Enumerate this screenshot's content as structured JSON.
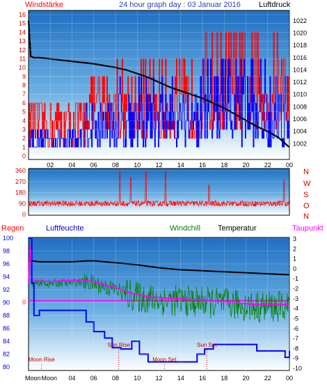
{
  "header": {
    "title": "24 hour graph day : 03 Januar 2016",
    "left_label": "Windstärke",
    "right_label": "Luftdruck"
  },
  "colors": {
    "wind": "#ff0000",
    "gust": "#0000ff",
    "pressure": "#000000",
    "direction": "#ff0000",
    "rain": "#ff0000",
    "humidity": "#0000ff",
    "windchill": "#008000",
    "temperature": "#000000",
    "dewpoint": "#ff00ff",
    "moon": "#c00000",
    "panel_top": "#2273c4",
    "panel_bottom": "#ffffff"
  },
  "chart_data": [
    {
      "type": "line",
      "name": "wind-pressure",
      "x_ticks": [
        "02",
        "04",
        "06",
        "08",
        "10",
        "12",
        "14",
        "16",
        "18",
        "20",
        "22",
        "00"
      ],
      "xlim": [
        0,
        24
      ],
      "ylabel": "Windstärke",
      "ylim": [
        0,
        16
      ],
      "y_ticks": [
        "0",
        "1",
        "2",
        "3",
        "4",
        "5",
        "6",
        "7",
        "8",
        "9",
        "10",
        "11",
        "12",
        "13",
        "14",
        "15",
        "16"
      ],
      "y2label": "Luftdruck",
      "y2lim": [
        1000,
        1023
      ],
      "y2_ticks": [
        "1002",
        "1004",
        "1006",
        "1008",
        "1010",
        "1012",
        "1014",
        "1016",
        "1018",
        "1020",
        "1022"
      ],
      "pressure": {
        "x": [
          0,
          0.2,
          0.5,
          1,
          2,
          3,
          4,
          5,
          6,
          7,
          8,
          9,
          10,
          11,
          12,
          13,
          14,
          15,
          16,
          17,
          18,
          19,
          20,
          21,
          22,
          23,
          23.5,
          24
        ],
        "y": [
          1022.0,
          1016.2,
          1016.0,
          1016.0,
          1015.8,
          1015.6,
          1015.4,
          1015.2,
          1015.0,
          1014.7,
          1014.4,
          1014.0,
          1013.4,
          1012.8,
          1012.0,
          1011.2,
          1010.6,
          1010.0,
          1009.4,
          1008.6,
          1007.8,
          1006.8,
          1005.8,
          1004.8,
          1004.0,
          1003.0,
          1002.2,
          1001.4
        ]
      },
      "wind_levels": [
        1,
        2,
        3,
        4,
        5,
        6,
        7,
        9,
        11,
        14
      ],
      "wind_range_by_period": [
        {
          "from": 0,
          "to": 5.2,
          "min": 1,
          "max": 6
        },
        {
          "from": 5.2,
          "to": 8,
          "min": 3,
          "max": 9
        },
        {
          "from": 8,
          "to": 16,
          "min": 2,
          "max": 12
        },
        {
          "from": 16,
          "to": 24,
          "min": 3,
          "max": 14
        }
      ]
    },
    {
      "type": "line",
      "name": "wind-direction",
      "x_ticks": [],
      "xlim": [
        0,
        24
      ],
      "ylim": [
        0,
        360
      ],
      "y_ticks": [
        "0",
        "90",
        "180",
        "270",
        "360"
      ],
      "compass_labels": [
        "N",
        "W",
        "S",
        "O",
        "N"
      ],
      "mean_direction": 90,
      "spikes": [
        {
          "x": 8.4,
          "y": 360
        },
        {
          "x": 9.4,
          "y": 300
        },
        {
          "x": 10.8,
          "y": 355
        },
        {
          "x": 12.6,
          "y": 350
        },
        {
          "x": 16.6,
          "y": 240
        },
        {
          "x": 23.5,
          "y": 280
        }
      ]
    },
    {
      "type": "line",
      "name": "climate",
      "x_ticks": [
        "Moon Rise",
        "Moon Set",
        "04",
        "06",
        "08",
        "10",
        "12",
        "14",
        "16",
        "18",
        "20",
        "22",
        "00"
      ],
      "xlim": [
        0,
        24
      ],
      "ylabel": "Regen",
      "ylim_left": [
        80,
        100
      ],
      "left_ticks": [
        "80",
        "82",
        "84",
        "86",
        "88",
        "90",
        "92",
        "94",
        "96",
        "98",
        "100"
      ],
      "rain_label": "0",
      "ylim_right": [
        -10,
        3
      ],
      "right_ticks": [
        "3",
        "2",
        "1",
        "0",
        "-1",
        "-2",
        "-3",
        "-4",
        "-5",
        "-6",
        "-7",
        "-8",
        "-9",
        "-10"
      ],
      "legend": [
        "Regen",
        "Luftfeuchte",
        "Windchill",
        "Temperatur",
        "Taupunkt"
      ],
      "humidity": {
        "x": [
          0,
          0.3,
          0.5,
          1,
          4.8,
          5.3,
          6,
          7,
          7.7,
          8.5,
          9.5,
          10.2,
          11,
          15,
          15.5,
          16.2,
          17,
          20.5,
          21,
          23.5,
          23.6,
          24
        ],
        "y": [
          100,
          93,
          88,
          88.8,
          88.8,
          87,
          85.5,
          84.5,
          83,
          82.8,
          84,
          82,
          80.8,
          80.8,
          82,
          82.8,
          83.5,
          83.5,
          82.5,
          82.5,
          81.5,
          82.5
        ]
      },
      "temperature": {
        "x": [
          0,
          0.3,
          1,
          2,
          4,
          5.5,
          6,
          8,
          10,
          12,
          14,
          16,
          18,
          20,
          22,
          24
        ],
        "y": [
          0.6,
          0.8,
          0.7,
          0.7,
          0.7,
          0.8,
          0.8,
          0.6,
          0.4,
          0.1,
          -0.1,
          -0.2,
          -0.3,
          -0.4,
          -0.5,
          -0.6
        ]
      },
      "dewpoint": {
        "x": [
          0,
          0.15,
          0.3,
          0.6,
          1,
          2,
          3,
          4,
          5,
          6,
          7,
          8,
          9,
          10,
          11,
          12,
          13,
          14,
          15,
          16,
          17,
          18,
          19,
          20,
          21,
          22,
          23,
          24
        ],
        "y": [
          -1.4,
          2.4,
          -1.2,
          -1.3,
          -1.2,
          -1.3,
          -1.2,
          -1.2,
          -1.1,
          -1.3,
          -1.6,
          -1.9,
          -2.3,
          -2.6,
          -2.8,
          -2.9,
          -3.0,
          -3.0,
          -3.1,
          -3.1,
          -3.2,
          -3.3,
          -3.4,
          -3.5,
          -3.6,
          -3.6,
          -3.6,
          -3.6
        ]
      },
      "windchill_offset_max": 1.6,
      "markers": [
        {
          "label": "Moon Rise",
          "x": 1.2
        },
        {
          "label": "Sun Rise",
          "x": 8.3
        },
        {
          "label": "Moon Set",
          "x": 12.5
        },
        {
          "label": "Sun Set",
          "x": 16.4
        }
      ]
    }
  ]
}
